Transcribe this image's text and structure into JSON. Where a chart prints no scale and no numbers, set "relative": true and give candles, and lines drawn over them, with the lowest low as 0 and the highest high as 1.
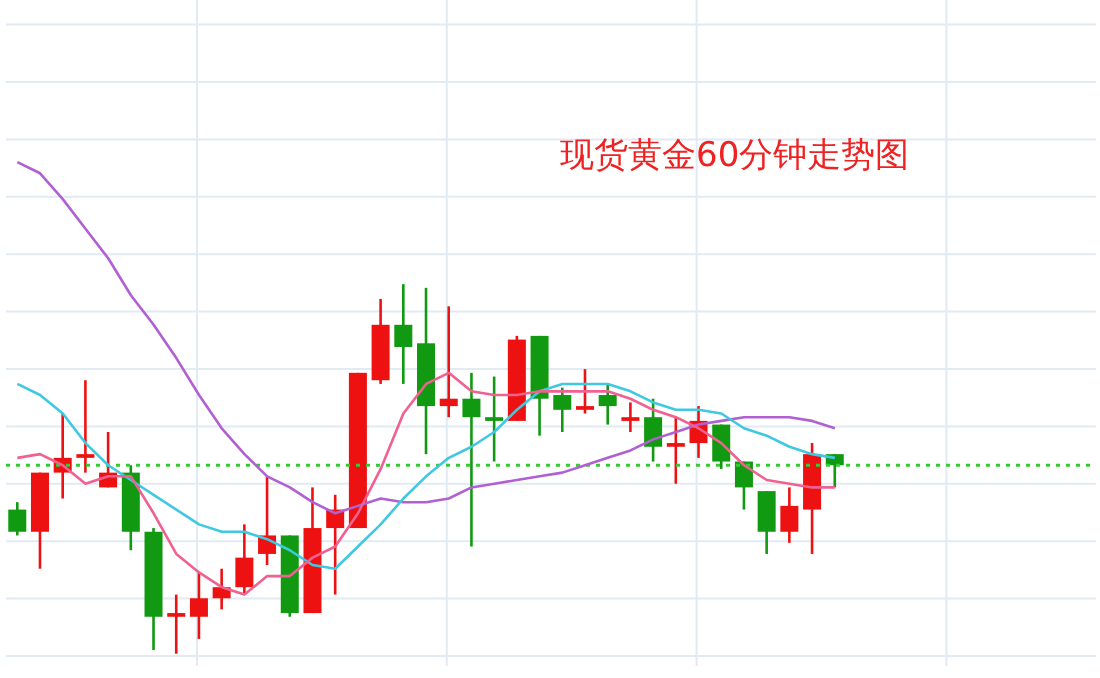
{
  "chart_data": {
    "type": "candlestick",
    "title": "现货黄金60分钟走势图",
    "relative": true,
    "grid": true,
    "legend": false,
    "marker": "none",
    "categories": [
      null,
      null,
      null,
      null,
      null,
      null,
      null,
      null,
      null,
      null,
      null,
      null,
      null,
      null,
      null,
      null,
      null,
      null,
      null,
      null,
      null,
      null,
      null,
      null,
      null,
      null,
      null,
      null,
      null,
      null,
      null,
      null,
      null,
      null,
      null,
      null,
      null
    ],
    "colors": [
      "#119911",
      "#ee1111",
      "#ee1111",
      "#ee1111",
      "#ee1111",
      "#119911",
      "#119911",
      "#ee1111",
      "#ee1111",
      "#ee1111",
      "#ee1111",
      "#ee1111",
      "#119911",
      "#ee1111",
      "#ee1111",
      "#ee1111",
      "#ee1111",
      "#119911",
      "#119911",
      "#ee1111",
      "#119911",
      "#119911",
      "#ee1111",
      "#119911",
      "#119911",
      "#ee1111",
      "#119911",
      "#ee1111",
      "#119911",
      "#ee1111",
      "#ee1111",
      "#119911",
      "#119911",
      "#119911",
      "#ee1111",
      "#ee1111",
      "#119911"
    ],
    "ohlc": [
      [
        0.39,
        0.41,
        0.32,
        0.33
      ],
      [
        0.33,
        0.49,
        0.23,
        0.49
      ],
      [
        0.49,
        0.65,
        0.42,
        0.53
      ],
      [
        0.53,
        0.74,
        0.49,
        0.54
      ],
      [
        0.45,
        0.6,
        0.45,
        0.49
      ],
      [
        0.49,
        0.51,
        0.28,
        0.33
      ],
      [
        0.33,
        0.34,
        0.01,
        0.1
      ],
      [
        0.1,
        0.16,
        0,
        0.11
      ],
      [
        0.1,
        0.22,
        0.04,
        0.15
      ],
      [
        0.15,
        0.23,
        0.12,
        0.18
      ],
      [
        0.18,
        0.35,
        0.16,
        0.26
      ],
      [
        0.27,
        0.48,
        0.24,
        0.32
      ],
      [
        0.32,
        0.32,
        0.1,
        0.11
      ],
      [
        0.11,
        0.45,
        0.11,
        0.34
      ],
      [
        0.34,
        0.43,
        0.16,
        0.39
      ],
      [
        0.34,
        0.76,
        0.34,
        0.76
      ],
      [
        0.74,
        0.96,
        0.73,
        0.89
      ],
      [
        0.89,
        1,
        0.73,
        0.83
      ],
      [
        0.84,
        0.99,
        0.54,
        0.67
      ],
      [
        0.67,
        0.94,
        0.64,
        0.69
      ],
      [
        0.69,
        0.76,
        0.29,
        0.64
      ],
      [
        0.64,
        0.75,
        0.52,
        0.63
      ],
      [
        0.63,
        0.86,
        0.63,
        0.85
      ],
      [
        0.86,
        0.86,
        0.59,
        0.69
      ],
      [
        0.7,
        0.72,
        0.6,
        0.66
      ],
      [
        0.66,
        0.77,
        0.65,
        0.67
      ],
      [
        0.7,
        0.73,
        0.62,
        0.67
      ],
      [
        0.63,
        0.68,
        0.6,
        0.64
      ],
      [
        0.64,
        0.69,
        0.52,
        0.56
      ],
      [
        0.56,
        0.64,
        0.46,
        0.57
      ],
      [
        0.57,
        0.67,
        0.53,
        0.63
      ],
      [
        0.62,
        0.62,
        0.5,
        0.52
      ],
      [
        0.52,
        0.52,
        0.39,
        0.45
      ],
      [
        0.44,
        0.44,
        0.27,
        0.33
      ],
      [
        0.33,
        0.45,
        0.3,
        0.4
      ],
      [
        0.39,
        0.57,
        0.27,
        0.54
      ],
      [
        0.54,
        0.54,
        0.45,
        0.51
      ]
    ],
    "series": [
      {
        "type": "line",
        "color": "#b060d0",
        "values": [
          1.33,
          1.3,
          1.23,
          1.15,
          1.07,
          0.97,
          0.89,
          0.8,
          0.7,
          0.61,
          0.54,
          0.48,
          0.45,
          0.41,
          0.38,
          0.4,
          0.42,
          0.41,
          0.41,
          0.42,
          0.45,
          0.46,
          0.47,
          0.48,
          0.49,
          0.51,
          0.53,
          0.55,
          0.58,
          0.6,
          0.62,
          0.63,
          0.64,
          0.64,
          0.64,
          0.63,
          0.61
        ]
      },
      {
        "type": "line",
        "color": "#40c8e0",
        "values": [
          0.73,
          0.7,
          0.65,
          0.57,
          0.51,
          0.47,
          0.43,
          0.39,
          0.35,
          0.33,
          0.33,
          0.31,
          0.28,
          0.24,
          0.23,
          0.29,
          0.35,
          0.42,
          0.48,
          0.53,
          0.56,
          0.6,
          0.66,
          0.71,
          0.73,
          0.73,
          0.73,
          0.71,
          0.68,
          0.66,
          0.66,
          0.65,
          0.61,
          0.59,
          0.56,
          0.54,
          0.53
        ]
      },
      {
        "type": "line",
        "color": "#f06090",
        "values": [
          0.53,
          0.54,
          0.51,
          0.46,
          0.48,
          0.48,
          0.38,
          0.27,
          0.22,
          0.18,
          0.16,
          0.21,
          0.21,
          0.26,
          0.29,
          0.38,
          0.5,
          0.65,
          0.73,
          0.76,
          0.71,
          0.7,
          0.7,
          0.71,
          0.71,
          0.71,
          0.71,
          0.69,
          0.66,
          0.64,
          0.61,
          0.57,
          0.51,
          0.47,
          0.46,
          0.45,
          0.45
        ]
      }
    ],
    "ref_lines": [
      {
        "axis": "y",
        "value": 0.51,
        "color": "#33cc33",
        "line_style": "dotted"
      }
    ]
  }
}
